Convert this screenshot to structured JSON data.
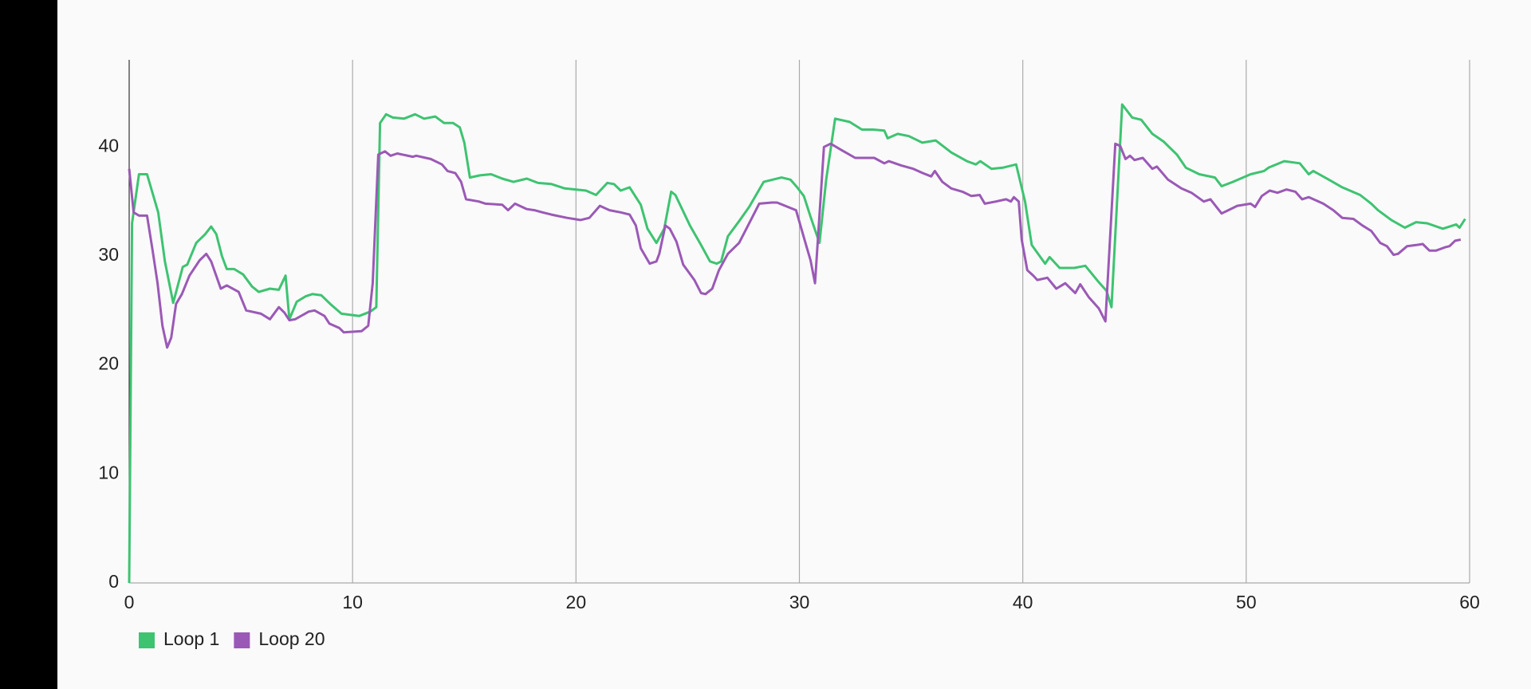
{
  "chart_data": {
    "type": "line",
    "xlim": [
      0,
      60
    ],
    "xticks": [
      0,
      10,
      20,
      30,
      40,
      50,
      60
    ],
    "ylim": [
      0,
      48
    ],
    "yticks": [
      0,
      10,
      20,
      30,
      40
    ],
    "grid": "x",
    "legend": "bottom-left",
    "series": [
      {
        "name": "Loop 1",
        "color": "#3ec371",
        "x": [
          0,
          0.13,
          0.44,
          0.8,
          1.3,
          1.6,
          1.97,
          2.4,
          2.6,
          3.0,
          3.4,
          3.67,
          3.9,
          4.15,
          4.37,
          4.7,
          5.1,
          5.5,
          5.8,
          6.3,
          6.7,
          7.0,
          7.17,
          7.5,
          7.9,
          8.2,
          8.6,
          9.0,
          9.5,
          10.3,
          10.8,
          11.06,
          11.23,
          11.5,
          11.8,
          12.3,
          12.8,
          13.2,
          13.7,
          14.1,
          14.5,
          14.8,
          15.0,
          15.25,
          15.7,
          16.2,
          16.7,
          17.2,
          17.8,
          18.3,
          18.9,
          19.5,
          20.45,
          20.9,
          21.4,
          21.7,
          22.0,
          22.4,
          22.9,
          23.2,
          23.6,
          23.95,
          24.26,
          24.45,
          25.1,
          25.6,
          26.0,
          26.3,
          26.5,
          26.8,
          27.3,
          27.75,
          28.4,
          28.8,
          29.2,
          29.6,
          29.9,
          30.2,
          30.5,
          30.9,
          31.2,
          31.6,
          32.25,
          32.8,
          33.3,
          33.8,
          33.95,
          34.4,
          34.9,
          35.5,
          36.1,
          36.8,
          37.5,
          37.9,
          38.1,
          38.6,
          39.1,
          39.7,
          40.1,
          40.4,
          41.0,
          41.2,
          41.65,
          42.3,
          42.8,
          43.4,
          43.75,
          43.97,
          44.45,
          44.9,
          45.3,
          45.8,
          46.3,
          46.9,
          47.3,
          47.9,
          48.6,
          48.9,
          49.4,
          50.2,
          50.8,
          51.0,
          51.7,
          52.4,
          52.8,
          53.0,
          53.7,
          54.3,
          55.1,
          55.6,
          55.9,
          56.5,
          57.1,
          57.6,
          58.1,
          58.8,
          59.4,
          59.55,
          59.8
        ],
        "values": [
          0,
          33,
          37.5,
          37.5,
          34,
          29.5,
          25.7,
          29,
          29.2,
          31.2,
          32,
          32.7,
          32,
          30,
          28.8,
          28.8,
          28.3,
          27.2,
          26.7,
          27,
          26.9,
          28.2,
          24.2,
          25.8,
          26.3,
          26.5,
          26.4,
          25.6,
          24.7,
          24.5,
          24.9,
          25.3,
          42.2,
          43,
          42.7,
          42.6,
          43,
          42.6,
          42.8,
          42.2,
          42.2,
          41.8,
          40.4,
          37.2,
          37.4,
          37.5,
          37.1,
          36.8,
          37.1,
          36.7,
          36.6,
          36.2,
          36,
          35.6,
          36.7,
          36.6,
          36,
          36.3,
          34.7,
          32.5,
          31.2,
          32.5,
          35.9,
          35.6,
          32.8,
          31,
          29.5,
          29.3,
          29.5,
          31.8,
          33.2,
          34.5,
          36.8,
          37,
          37.2,
          37,
          36.3,
          35.5,
          33.6,
          31.2,
          37,
          42.6,
          42.3,
          41.6,
          41.6,
          41.5,
          40.8,
          41.2,
          41,
          40.4,
          40.6,
          39.5,
          38.7,
          38.4,
          38.7,
          38,
          38.1,
          38.4,
          35,
          31,
          29.3,
          29.9,
          28.9,
          28.9,
          29.1,
          27.6,
          26.8,
          25.3,
          43.9,
          42.7,
          42.5,
          41.2,
          40.5,
          39.3,
          38.1,
          37.5,
          37.2,
          36.4,
          36.8,
          37.5,
          37.8,
          38.1,
          38.7,
          38.5,
          37.5,
          37.8,
          37,
          36.3,
          35.6,
          34.8,
          34.2,
          33.3,
          32.6,
          33.1,
          33,
          32.5,
          32.9,
          32.6,
          33.4
        ]
      },
      {
        "name": "Loop 20",
        "color": "#9b59b6",
        "x": [
          0,
          0.2,
          0.44,
          0.8,
          1.05,
          1.27,
          1.49,
          1.7,
          1.88,
          2.1,
          2.36,
          2.7,
          3.15,
          3.45,
          3.67,
          4.1,
          4.37,
          4.9,
          5.24,
          5.9,
          6.3,
          6.7,
          6.95,
          7.17,
          7.43,
          8.04,
          8.3,
          8.74,
          8.96,
          9.4,
          9.6,
          10.4,
          10.7,
          10.9,
          11.15,
          11.45,
          11.7,
          12.0,
          12.7,
          12.85,
          13.5,
          14.0,
          14.25,
          14.6,
          14.86,
          15.08,
          15.65,
          15.95,
          16.7,
          16.96,
          17.27,
          17.8,
          18.14,
          18.5,
          18.9,
          19.6,
          20.2,
          20.6,
          21.07,
          21.5,
          22.0,
          22.4,
          22.68,
          22.9,
          23.3,
          23.6,
          23.73,
          24.0,
          24.2,
          24.5,
          24.8,
          25.3,
          25.6,
          25.8,
          26.1,
          26.4,
          26.8,
          27.3,
          27.8,
          28.2,
          28.76,
          29.0,
          29.85,
          30.3,
          30.5,
          30.7,
          31.1,
          31.4,
          31.9,
          32.5,
          33.35,
          33.8,
          34.0,
          34.57,
          35.1,
          35.53,
          35.9,
          36.06,
          36.4,
          36.8,
          37.3,
          37.7,
          38.07,
          38.3,
          38.8,
          39.25,
          39.47,
          39.6,
          39.82,
          39.95,
          40.2,
          40.47,
          40.65,
          41.1,
          41.5,
          41.9,
          42.35,
          42.57,
          42.96,
          43.4,
          43.7,
          44.14,
          44.36,
          44.6,
          44.8,
          45.0,
          45.37,
          45.8,
          46.0,
          46.5,
          47.1,
          47.55,
          48.1,
          48.4,
          48.9,
          49.2,
          49.6,
          50.2,
          50.4,
          50.7,
          51.05,
          51.4,
          51.8,
          52.2,
          52.5,
          52.8,
          53.45,
          53.9,
          54.3,
          54.8,
          55.2,
          55.6,
          56.0,
          56.3,
          56.6,
          56.8,
          57.2,
          57.6,
          57.9,
          58.2,
          58.5,
          58.9,
          59.1,
          59.35,
          59.6
        ],
        "values": [
          38,
          34,
          33.7,
          33.7,
          30.5,
          27.5,
          23.6,
          21.6,
          22.5,
          25.6,
          26.5,
          28.2,
          29.6,
          30.2,
          29.5,
          27,
          27.3,
          26.7,
          25,
          24.7,
          24.2,
          25.3,
          24.8,
          24.1,
          24.2,
          24.9,
          25,
          24.5,
          23.8,
          23.4,
          23,
          23.1,
          23.6,
          27.5,
          39.3,
          39.6,
          39.2,
          39.4,
          39.1,
          39.2,
          38.9,
          38.4,
          37.8,
          37.6,
          36.8,
          35.2,
          35,
          34.8,
          34.7,
          34.2,
          34.8,
          34.3,
          34.2,
          34,
          33.8,
          33.5,
          33.3,
          33.5,
          34.6,
          34.2,
          34,
          33.8,
          32.8,
          30.7,
          29.3,
          29.5,
          30.2,
          32.8,
          32.5,
          31.3,
          29.2,
          27.8,
          26.6,
          26.5,
          27,
          28.7,
          30.2,
          31.2,
          33.2,
          34.8,
          34.9,
          34.9,
          34.2,
          31,
          29.6,
          27.5,
          40,
          40.3,
          39.7,
          39,
          39,
          38.5,
          38.7,
          38.3,
          38,
          37.6,
          37.3,
          37.8,
          36.8,
          36.2,
          35.9,
          35.5,
          35.6,
          34.8,
          35,
          35.2,
          35,
          35.4,
          35,
          31.5,
          28.7,
          28.2,
          27.8,
          28,
          27,
          27.5,
          26.6,
          27.4,
          26.2,
          25.2,
          24,
          40.3,
          40.1,
          38.9,
          39.2,
          38.8,
          39,
          38,
          38.2,
          37,
          36.2,
          35.8,
          35,
          35.2,
          33.9,
          34.2,
          34.6,
          34.8,
          34.5,
          35.5,
          36,
          35.8,
          36.1,
          35.9,
          35.2,
          35.4,
          34.8,
          34.2,
          33.5,
          33.4,
          32.8,
          32.3,
          31.2,
          30.9,
          30.1,
          30.2,
          30.9,
          31,
          31.1,
          30.5,
          30.5,
          30.8,
          30.9,
          31.4,
          31.5
        ]
      }
    ]
  }
}
